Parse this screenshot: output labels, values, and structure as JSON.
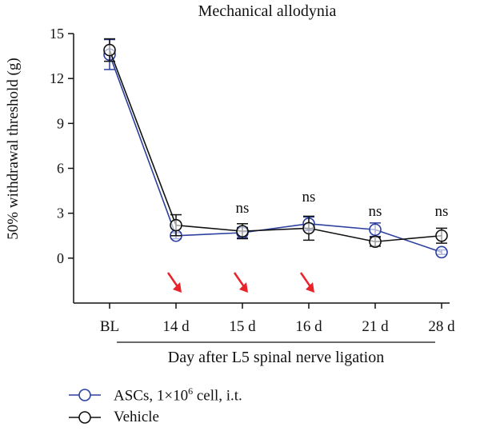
{
  "chart_data": {
    "type": "line",
    "title": "Mechanical allodynia",
    "ylabel": "50% withdrawal threshold (g)",
    "xlabel": "Day after L5 spinal nerve ligation",
    "categories": [
      "BL",
      "14 d",
      "15 d",
      "16 d",
      "21 d",
      "28 d"
    ],
    "yticks": [
      "0",
      "3",
      "6",
      "9",
      "12",
      "15"
    ],
    "ylim": [
      -3,
      15
    ],
    "grid": false,
    "legend_position": "bottom-left",
    "series": [
      {
        "name": "ASCs, 1×10",
        "name_sup": "6",
        "name_suffix": " cell, i.t.",
        "color": "#2b3f9e",
        "values": [
          13.6,
          1.5,
          1.7,
          2.3,
          1.9,
          0.4
        ],
        "errors": [
          1.0,
          0.2,
          0.35,
          0.45,
          0.45,
          0.15
        ]
      },
      {
        "name": "Vehicle",
        "color": "#111111",
        "values": [
          13.9,
          2.2,
          1.8,
          2.0,
          1.1,
          1.5
        ],
        "errors": [
          0.75,
          0.7,
          0.5,
          0.8,
          0.3,
          0.5
        ]
      }
    ],
    "annotations": [
      {
        "category": "15 d",
        "text": "ns"
      },
      {
        "category": "16 d",
        "text": "ns"
      },
      {
        "category": "21 d",
        "text": "ns"
      },
      {
        "category": "28 d",
        "text": "ns"
      }
    ],
    "arrows": {
      "categories": [
        "14 d",
        "15 d",
        "16 d"
      ],
      "color": "#e8232a"
    }
  }
}
